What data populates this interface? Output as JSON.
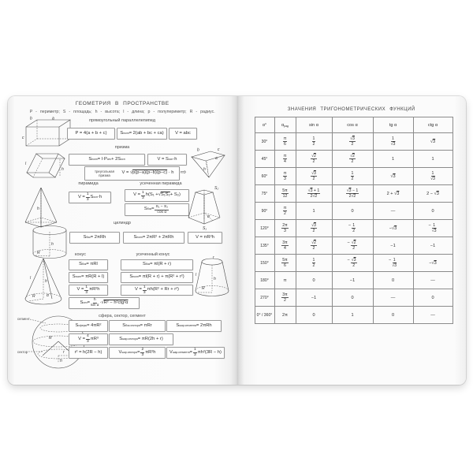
{
  "left_page": {
    "title": "ГЕОМЕТРИЯ В ПРОСТРАНСТВЕ",
    "legend": "P - периметр; S - площадь; h - высота; l - длина; p - полупериметр; R - радиус.",
    "sections": {
      "par": {
        "title": "прямоугольный параллелепипед",
        "f": [
          "P = 4(a + b + c)",
          "S_{полн} = 2(ab + bc + ca)",
          "V = abc"
        ]
      },
      "prism": {
        "title": "призма",
        "f": [
          "S_{полн} = l·P_{сеч} + 2S_{осн}",
          "V = S_{осн}·h"
        ],
        "tri_label": "треугольная призма",
        "tri_formula": "V = √{p(p−a)(p−b)(p−c)} · h"
      },
      "pyramid": {
        "title": "пирамида",
        "f": [
          "V = [1|3] S_{осн}·h"
        ]
      },
      "trunc_pyramid": {
        "title": "усеченная пирамида",
        "f": [
          "V = [1|3] h(S₁ + √{S₁S₂} + S₂)",
          "S_{бок} = [S₁ − S₂|cos α]"
        ]
      },
      "cylinder": {
        "title": "цилиндр",
        "f": [
          "S_{бок} = 2πRh",
          "S_{полн} = 2πR² + 2πRh",
          "V = πR²h"
        ]
      },
      "cone": {
        "title": "конус",
        "f": [
          "S_{бок} = πRl",
          "S_{полн} = πR(R + l)",
          "V = [1|3] πR²h",
          "S_{сеч} = [h|sin α]·√{R² − h²ctg²α}"
        ]
      },
      "trunc_cone": {
        "title": "усеченный конус",
        "f": [
          "S_{бок} = πl(R + r)",
          "S_{полн} = πl(R + r) + π(R² + r²)",
          "V = [1|3] πh(R² + Rr + r²)"
        ]
      },
      "sphere": {
        "title": "сфера, сектор, сегмент",
        "f": [
          "S_{сферы} = 4πR²",
          "S_{бок.сектора} = πRr",
          "S_{шар.сегмента} = 2πRh",
          "V = [4|3] πR³",
          "S_{шар.сектора} = πR(2h + r)",
          "r² = h(2R − h)",
          "V_{шар.сектора} = [2|3] πR²h",
          "V_{шар.сегмента} = [1|3] πh²(3R − h)"
        ]
      }
    },
    "drawings": {
      "parallelepiped": [
        "a",
        "b",
        "c"
      ],
      "prism": [
        "l",
        "h"
      ],
      "tri_prism": [
        "b",
        "c",
        "a",
        "h"
      ],
      "pyramid": [
        "h"
      ],
      "trunc_pyramid": [
        "S₂",
        "S₁",
        "α"
      ],
      "cylinder": [
        "h",
        "R"
      ],
      "cone": [
        "l",
        "h",
        "R",
        "α"
      ],
      "trunc_cone": [
        "r",
        "l",
        "h",
        "R"
      ],
      "sphere": [
        "сегмент",
        "R",
        "сектор",
        "r",
        "h"
      ]
    }
  },
  "right_page": {
    "title": "ЗНАЧЕНИЯ ТРИГОНОМЕТРИЧЕСКИХ ФУНКЦИЙ",
    "table": {
      "headers": [
        "α°",
        "α_{рад}",
        "sin α",
        "cos α",
        "tg α",
        "ctg α"
      ],
      "rows": [
        [
          "30°",
          "[π|6]",
          "[1|2]",
          "[√{3}|2]",
          "[1|√{3}]",
          "√{3}"
        ],
        [
          "45°",
          "[π|4]",
          "[√{2}|2]",
          "[√{2}|2]",
          "1",
          "1"
        ],
        [
          "60°",
          "[π|3]",
          "[√{3}|2]",
          "[1|2]",
          "√{3}",
          "[1|√{3}]"
        ],
        [
          "75°",
          "[5π|12]",
          "[√{3} + 1|2√{2}]",
          "[√{3} − 1|2√{2}]",
          "2 + √{3}",
          "2 − √{3}"
        ],
        [
          "90°",
          "[π|2]",
          "1",
          "0",
          "—",
          "0"
        ],
        [
          "120°",
          "[2π|3]",
          "[√{3}|2]",
          "−[1|2]",
          "−√{3}",
          "−[1|√{3}]"
        ],
        [
          "135°",
          "[3π|4]",
          "[√{2}|2]",
          "−[√{2}|2]",
          "−1",
          "−1"
        ],
        [
          "150°",
          "[5π|6]",
          "[1|2]",
          "−[√{3}|2]",
          "−[1|√{3}]",
          "−√{3}"
        ],
        [
          "180°",
          "π",
          "0",
          "−1",
          "0",
          "—"
        ],
        [
          "270°",
          "[3π|2]",
          "−1",
          "0",
          "—",
          "0"
        ],
        [
          "0° / 360°",
          "2π",
          "0",
          "1",
          "0",
          "—"
        ]
      ]
    }
  }
}
